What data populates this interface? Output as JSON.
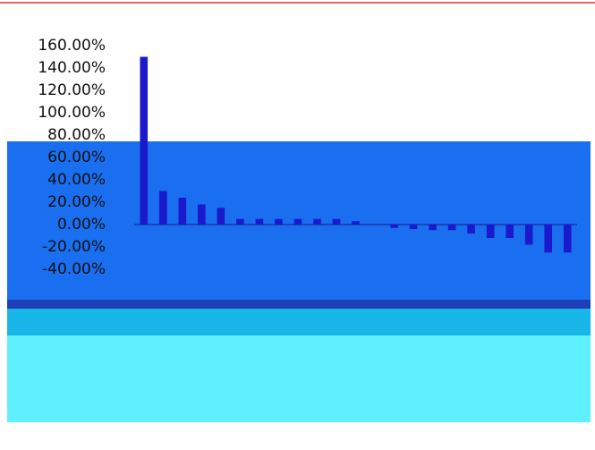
{
  "chart_data": {
    "type": "bar",
    "categories": [
      null,
      null,
      null,
      null,
      null,
      null,
      null,
      null,
      null,
      null,
      null,
      null,
      null,
      null,
      null,
      null,
      null,
      null,
      null,
      null,
      null,
      null,
      null
    ],
    "values": [
      150,
      30,
      24,
      18,
      15,
      5,
      5,
      5,
      5,
      5,
      5,
      3,
      0,
      -3,
      -4,
      -5,
      -5,
      -8,
      -12,
      -12,
      -18,
      -25,
      -25
    ],
    "color": "#1a1acc",
    "ylim": [
      -40,
      160
    ],
    "yticks": [
      {
        "value": 160,
        "label": "160.00%"
      },
      {
        "value": 140,
        "label": "140.00%"
      },
      {
        "value": 120,
        "label": "120.00%"
      },
      {
        "value": 100,
        "label": "100.00%"
      },
      {
        "value": 80,
        "label": "80.00%"
      },
      {
        "value": 60,
        "label": "60.00%"
      },
      {
        "value": 40,
        "label": "40.00%"
      },
      {
        "value": 20,
        "label": "20.00%"
      },
      {
        "value": 0,
        "label": "0.00%"
      },
      {
        "value": -20,
        "label": "-20.00%"
      },
      {
        "value": -40,
        "label": "-40.00%"
      }
    ],
    "grid": false
  }
}
